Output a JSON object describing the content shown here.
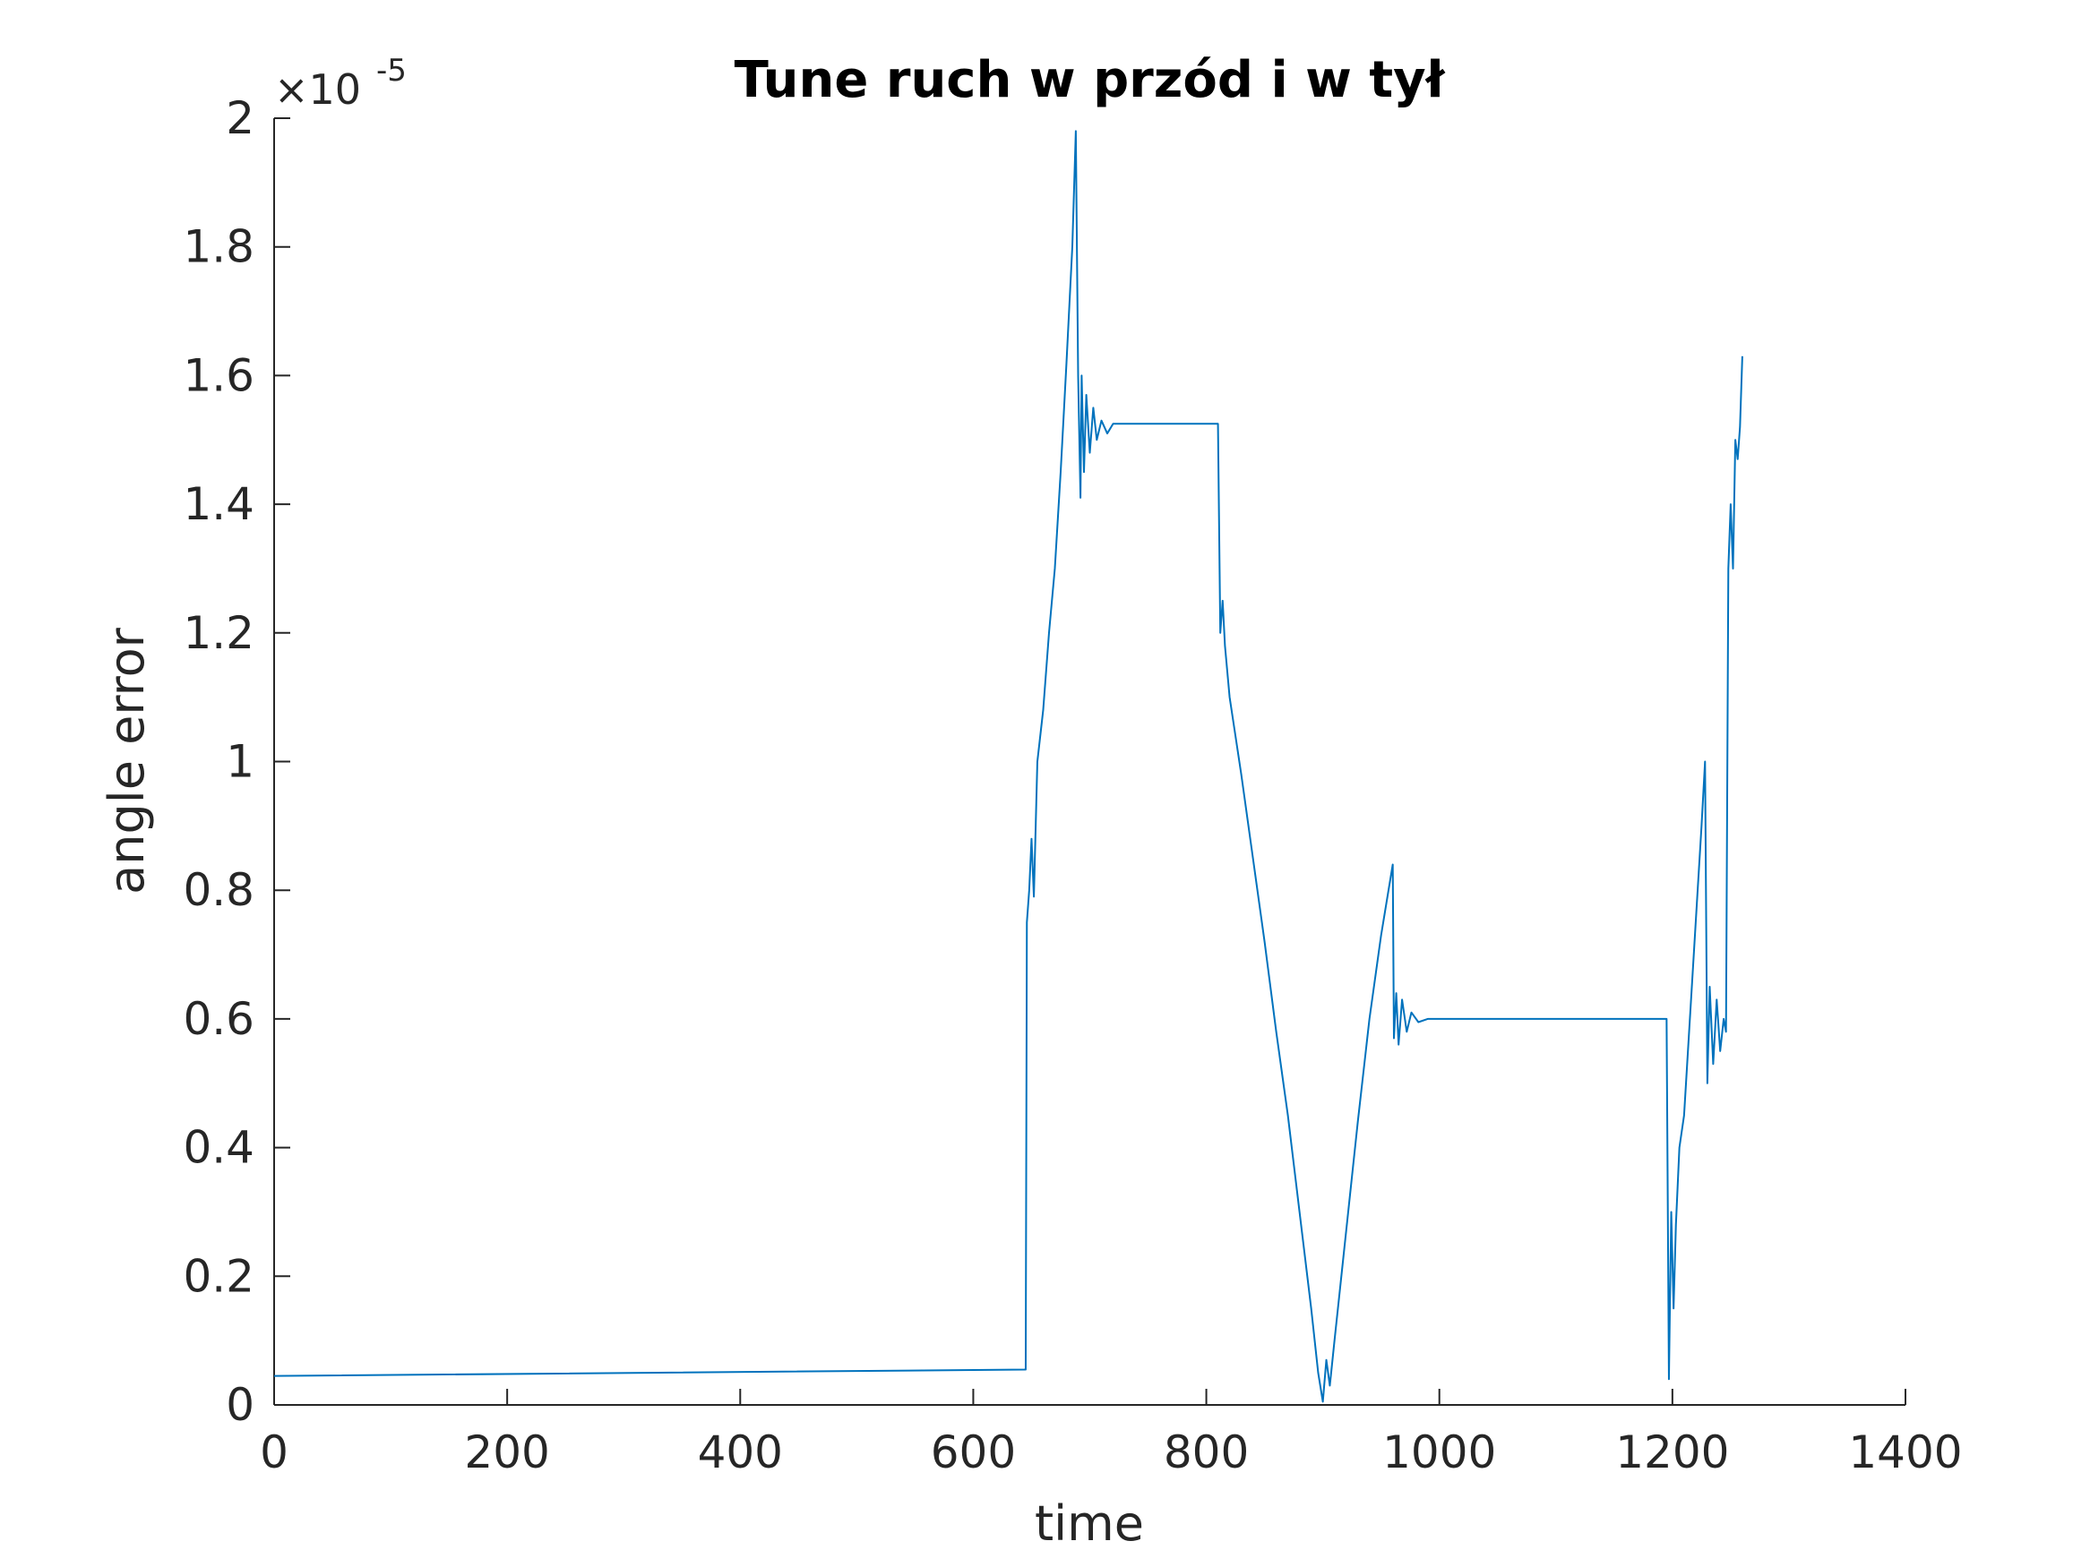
{
  "chart_data": {
    "type": "line",
    "title": "Tune ruch w przód i w tył",
    "x_label": "time",
    "y_label": "angle error",
    "y_exponent_base": "×10",
    "y_exponent": "-5",
    "xlim": [
      0,
      1400
    ],
    "xticks": [
      0,
      200,
      400,
      600,
      800,
      1000,
      1200,
      1400
    ],
    "ylim": [
      0,
      2
    ],
    "yticks": [
      0,
      0.2,
      0.4,
      0.6,
      0.8,
      1,
      1.2,
      1.4,
      1.6,
      1.8,
      2
    ],
    "grid": false,
    "series": [
      {
        "color": "#0072bd",
        "x": [
          0,
          645,
          646,
          648,
          650,
          652,
          655,
          660,
          665,
          670,
          675,
          680,
          685,
          688,
          690,
          692,
          693,
          695,
          697,
          700,
          703,
          706,
          710,
          715,
          720,
          810,
          812,
          814,
          816,
          820,
          830,
          840,
          850,
          860,
          870,
          880,
          890,
          896,
          900,
          903,
          906,
          910,
          920,
          930,
          940,
          950,
          960,
          961,
          963,
          965,
          968,
          972,
          976,
          982,
          990,
          1195,
          1197,
          1199,
          1201,
          1203,
          1206,
          1210,
          1215,
          1220,
          1225,
          1228,
          1230,
          1232,
          1235,
          1238,
          1241,
          1244,
          1246,
          1248,
          1250,
          1252,
          1254,
          1256,
          1258,
          1260
        ],
        "values": [
          0.045,
          0.055,
          0.75,
          0.8,
          0.88,
          0.79,
          1.0,
          1.08,
          1.2,
          1.3,
          1.45,
          1.62,
          1.8,
          1.98,
          1.6,
          1.41,
          1.6,
          1.45,
          1.57,
          1.48,
          1.55,
          1.5,
          1.53,
          1.51,
          1.525,
          1.525,
          1.2,
          1.25,
          1.18,
          1.1,
          0.98,
          0.85,
          0.72,
          0.58,
          0.45,
          0.3,
          0.15,
          0.05,
          0.005,
          0.07,
          0.03,
          0.1,
          0.27,
          0.44,
          0.6,
          0.73,
          0.84,
          0.57,
          0.64,
          0.56,
          0.63,
          0.58,
          0.61,
          0.595,
          0.6,
          0.6,
          0.04,
          0.3,
          0.15,
          0.28,
          0.4,
          0.45,
          0.6,
          0.75,
          0.9,
          1.0,
          0.5,
          0.65,
          0.53,
          0.63,
          0.55,
          0.6,
          0.58,
          1.3,
          1.4,
          1.3,
          1.5,
          1.47,
          1.52,
          1.63
        ]
      }
    ]
  }
}
